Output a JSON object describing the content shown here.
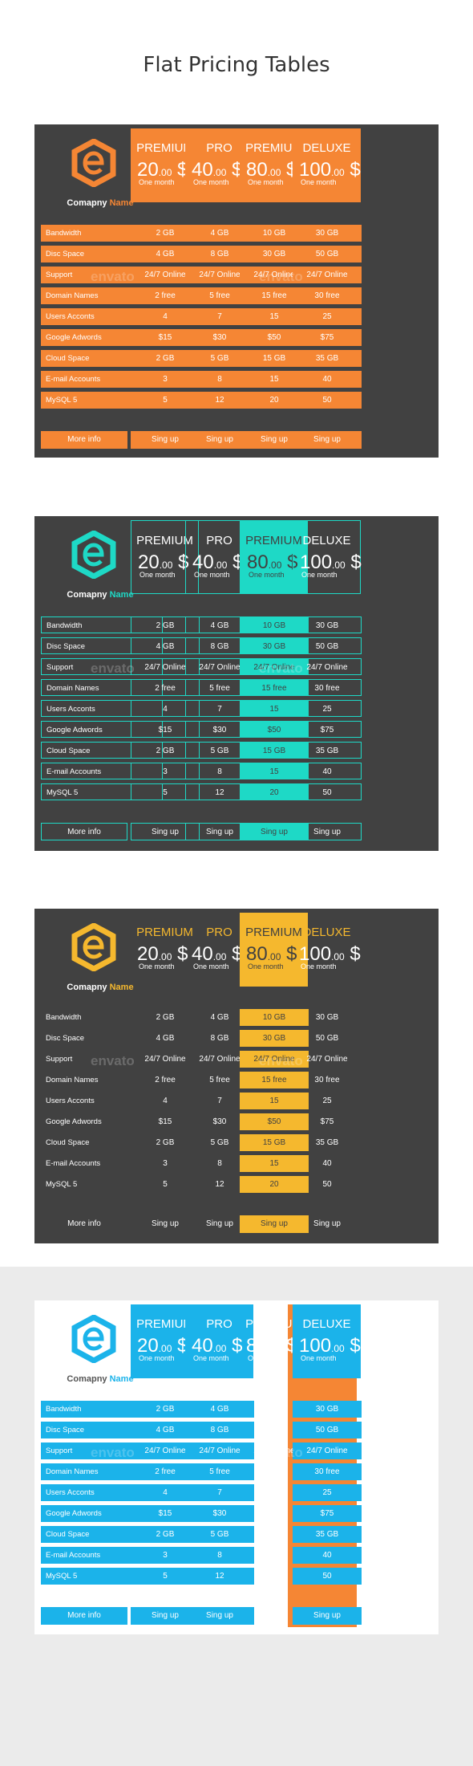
{
  "page": {
    "title": "Flat Pricing Tables"
  },
  "company": {
    "prefix": "Comapny",
    "accent_word": "Name"
  },
  "watermark": "envato",
  "plans": [
    {
      "name": "PREMIUM",
      "price": "20",
      "cents": ".00",
      "currency": "$",
      "period": "One month"
    },
    {
      "name": "PRO",
      "price": "40",
      "cents": ".00",
      "currency": "$",
      "period": "One month"
    },
    {
      "name": "PREMIUM",
      "price": "80",
      "cents": ".00",
      "currency": "$",
      "period": "One month"
    },
    {
      "name": "DELUXE",
      "price": "100",
      "cents": ".00",
      "currency": "$",
      "period": "One month"
    }
  ],
  "rows": [
    {
      "label": "Bandwidth",
      "values": [
        "2 GB",
        "4 GB",
        "10 GB",
        "30 GB"
      ]
    },
    {
      "label": "Disc Space",
      "values": [
        "4 GB",
        "8 GB",
        "30 GB",
        "50 GB"
      ]
    },
    {
      "label": "Support",
      "values": [
        "24/7 Online",
        "24/7 Online",
        "24/7 Online",
        "24/7 Online"
      ]
    },
    {
      "label": "Domain Names",
      "values": [
        "2 free",
        "5 free",
        "15 free",
        "30 free"
      ]
    },
    {
      "label": "Users Acconts",
      "values": [
        "4",
        "7",
        "15",
        "25"
      ]
    },
    {
      "label": "Google Adwords",
      "values": [
        "$15",
        "$30",
        "$50",
        "$75"
      ]
    },
    {
      "label": "Cloud Space",
      "values": [
        "2 GB",
        "5 GB",
        "15 GB",
        "35 GB"
      ]
    },
    {
      "label": "E-mail Accounts",
      "values": [
        "3",
        "8",
        "15",
        "40"
      ]
    },
    {
      "label": "MySQL 5",
      "values": [
        "5",
        "12",
        "20",
        "50"
      ]
    }
  ],
  "footer": {
    "more_info": "More info",
    "sign_up": "Sing up"
  },
  "themes": [
    {
      "style": "s1",
      "accent": "#f58634",
      "highlight_column": -1
    },
    {
      "style": "s2",
      "accent": "#1ed9c6",
      "highlight_column": 2
    },
    {
      "style": "s3",
      "accent": "#f5b82e",
      "highlight_column": 2
    },
    {
      "style": "s4",
      "accent": "#1bb3ea",
      "highlight_column": 2
    }
  ]
}
